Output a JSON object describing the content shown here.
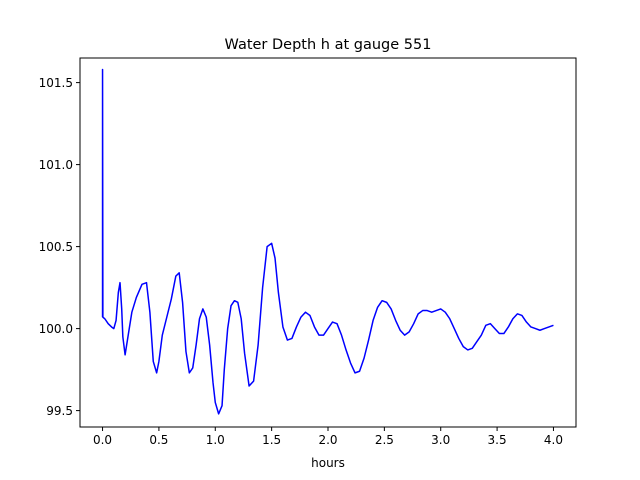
{
  "chart_data": {
    "type": "line",
    "title": "Water Depth h at gauge 551",
    "xlabel": "hours",
    "ylabel": "",
    "xlim": [
      -0.2,
      4.2
    ],
    "ylim": [
      99.4,
      101.65
    ],
    "x_ticks": [
      0.0,
      0.5,
      1.0,
      1.5,
      2.0,
      2.5,
      3.0,
      3.5,
      4.0
    ],
    "x_tick_labels": [
      "0.0",
      "0.5",
      "1.0",
      "1.5",
      "2.0",
      "2.5",
      "3.0",
      "3.5",
      "4.0"
    ],
    "y_ticks": [
      99.5,
      100.0,
      100.5,
      101.0,
      101.5
    ],
    "y_tick_labels": [
      "99.5",
      "100.0",
      "100.5",
      "101.0",
      "101.5"
    ],
    "grid": false,
    "legend": "none",
    "series": [
      {
        "color": "#0000ff",
        "x": [
          0.0,
          0.0,
          0.003,
          0.02,
          0.05,
          0.08,
          0.1,
          0.12,
          0.14,
          0.155,
          0.17,
          0.18,
          0.2,
          0.23,
          0.26,
          0.3,
          0.35,
          0.39,
          0.42,
          0.45,
          0.48,
          0.5,
          0.53,
          0.57,
          0.61,
          0.65,
          0.68,
          0.71,
          0.74,
          0.77,
          0.8,
          0.83,
          0.86,
          0.89,
          0.92,
          0.95,
          0.98,
          1.0,
          1.03,
          1.06,
          1.08,
          1.11,
          1.14,
          1.17,
          1.2,
          1.23,
          1.26,
          1.3,
          1.34,
          1.38,
          1.42,
          1.46,
          1.5,
          1.53,
          1.56,
          1.6,
          1.64,
          1.68,
          1.72,
          1.76,
          1.8,
          1.84,
          1.88,
          1.92,
          1.96,
          2.0,
          2.04,
          2.08,
          2.12,
          2.16,
          2.2,
          2.24,
          2.28,
          2.32,
          2.36,
          2.4,
          2.44,
          2.48,
          2.52,
          2.56,
          2.6,
          2.64,
          2.68,
          2.72,
          2.76,
          2.8,
          2.84,
          2.88,
          2.92,
          2.96,
          3.0,
          3.04,
          3.08,
          3.12,
          3.16,
          3.2,
          3.24,
          3.28,
          3.32,
          3.36,
          3.4,
          3.44,
          3.48,
          3.52,
          3.56,
          3.6,
          3.64,
          3.68,
          3.72,
          3.76,
          3.8,
          3.84,
          3.88,
          3.92,
          3.96,
          4.0
        ],
        "y": [
          100.07,
          101.58,
          100.07,
          100.06,
          100.03,
          100.01,
          100.0,
          100.05,
          100.22,
          100.28,
          100.12,
          99.95,
          99.84,
          99.97,
          100.1,
          100.19,
          100.27,
          100.28,
          100.1,
          99.8,
          99.73,
          99.8,
          99.96,
          100.07,
          100.18,
          100.32,
          100.34,
          100.16,
          99.86,
          99.73,
          99.76,
          99.9,
          100.06,
          100.12,
          100.07,
          99.9,
          99.67,
          99.55,
          99.48,
          99.53,
          99.75,
          100.0,
          100.14,
          100.17,
          100.16,
          100.06,
          99.85,
          99.65,
          99.68,
          99.9,
          100.25,
          100.5,
          100.52,
          100.43,
          100.22,
          100.01,
          99.93,
          99.94,
          100.01,
          100.07,
          100.1,
          100.08,
          100.01,
          99.96,
          99.96,
          100.0,
          100.04,
          100.03,
          99.96,
          99.87,
          99.79,
          99.73,
          99.74,
          99.82,
          99.93,
          100.05,
          100.13,
          100.17,
          100.16,
          100.12,
          100.05,
          99.99,
          99.96,
          99.98,
          100.03,
          100.09,
          100.11,
          100.11,
          100.1,
          100.11,
          100.12,
          100.1,
          100.06,
          100.0,
          99.94,
          99.89,
          99.87,
          99.88,
          99.92,
          99.96,
          100.02,
          100.03,
          100.0,
          99.97,
          99.97,
          100.01,
          100.06,
          100.09,
          100.08,
          100.04,
          100.01,
          100.0,
          99.99,
          100.0,
          100.01,
          100.02
        ]
      }
    ]
  }
}
